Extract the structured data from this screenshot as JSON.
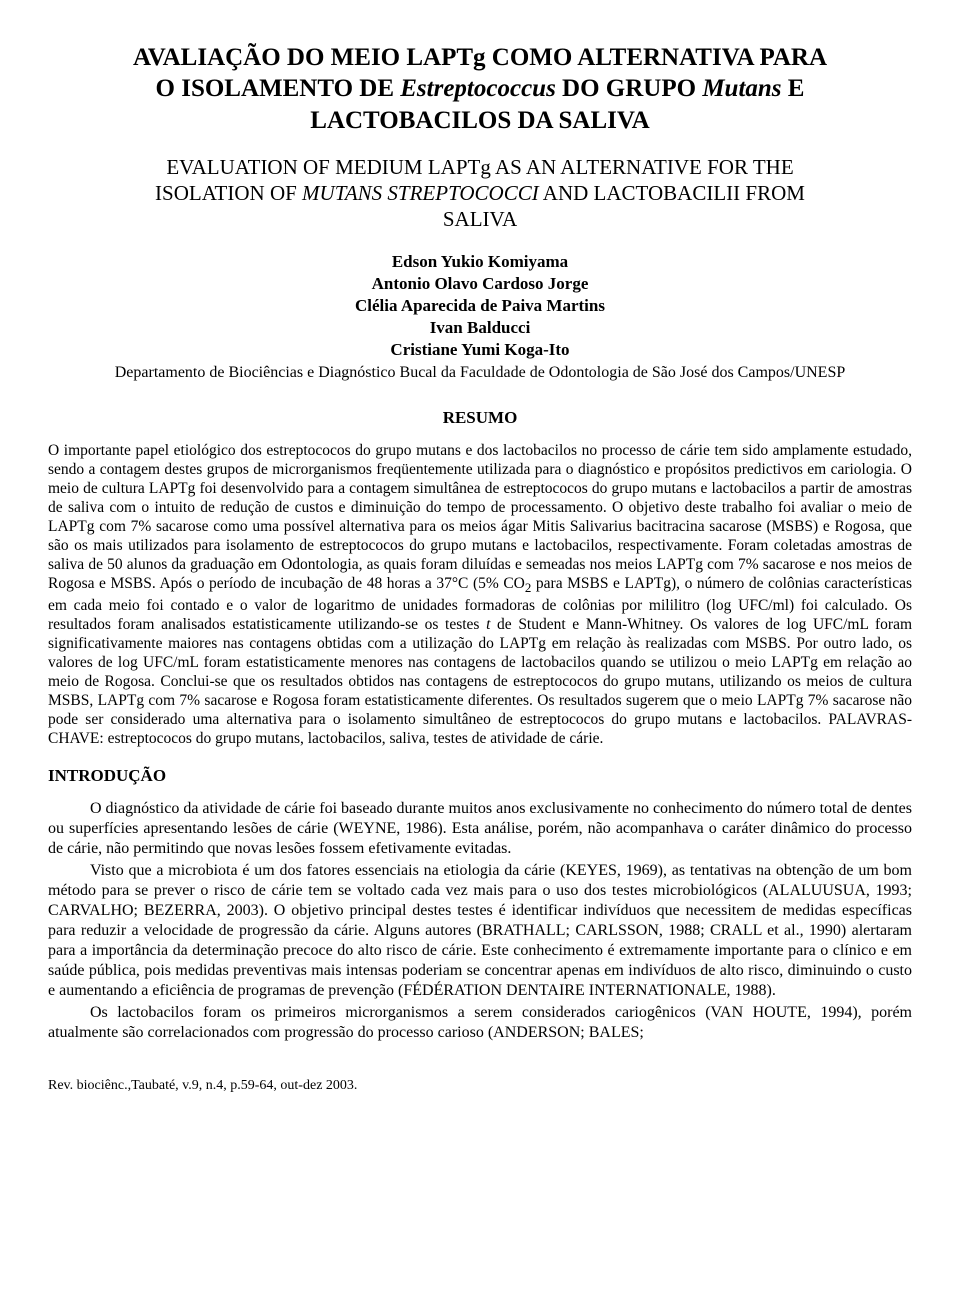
{
  "title": {
    "line1": "AVALIAÇÃO DO MEIO LAPTg COMO ALTERNATIVA PARA",
    "line2_pre": "O ISOLAMENTO DE ",
    "line2_em": "Estreptococcus",
    "line2_mid": " DO GRUPO ",
    "line2_em2": "Mutans",
    "line2_post": " E",
    "line3": "LACTOBACILOS DA SALIVA"
  },
  "subtitle": {
    "line1": "EVALUATION OF MEDIUM LAPTg AS AN ALTERNATIVE FOR THE",
    "line2_pre": "ISOLATION OF ",
    "line2_em": "MUTANS STREPTOCOCCI",
    "line2_post": " AND LACTOBACILII FROM",
    "line3": "SALIVA"
  },
  "authors": [
    "Edson Yukio Komiyama",
    "Antonio Olavo Cardoso Jorge",
    "Clélia Aparecida de Paiva Martins",
    "Ivan Balducci",
    "Cristiane Yumi Koga-Ito"
  ],
  "affiliation": "Departamento de Biociências e Diagnóstico Bucal da Faculdade de Odontologia de São José dos Campos/UNESP",
  "resumo_heading": "RESUMO",
  "abstract_pre": "O importante papel etiológico dos estreptococos do grupo mutans e dos lactobacilos no processo de cárie tem sido amplamente estudado, sendo a contagem destes grupos de microrganismos freqüentemente utilizada para o diagnóstico e propósitos predictivos em cariologia. O meio de cultura LAPTg foi desenvolvido para a contagem simultânea de estreptococos do grupo mutans e lactobacilos a partir de amostras de saliva com o intuito de redução de custos e diminuição do tempo de processamento. O objetivo deste trabalho foi avaliar o meio de LAPTg com 7% sacarose como uma possível alternativa para os meios ágar Mitis Salivarius bacitracina sacarose (MSBS) e Rogosa, que são os mais utilizados para isolamento de estreptococos do grupo mutans e lactobacilos, respectivamente. Foram coletadas amostras de saliva de 50 alunos da graduação em Odontologia, as quais foram diluídas e semeadas nos meios LAPTg com 7% sacarose e nos meios de Rogosa e MSBS. Após o período de incubação de 48 horas a 37°C (5% CO",
  "abstract_sub": "2",
  "abstract_mid": " para MSBS e LAPTg), o número de colônias características em cada meio foi contado e o valor de logaritmo de unidades formadoras de colônias por mililitro (log UFC/ml) foi calculado. Os resultados foram analisados estatisticamente utilizando-se os testes ",
  "abstract_em": "t",
  "abstract_post": " de Student e Mann-Whitney. Os valores de log UFC/mL foram significativamente maiores nas contagens obtidas com a utilização do LAPTg em relação às realizadas com MSBS. Por outro lado, os valores de log UFC/mL foram estatisticamente menores nas contagens de lactobacilos quando se utilizou o meio LAPTg em relação ao meio de Rogosa. Conclui-se que os resultados obtidos nas contagens de estreptococos do grupo mutans, utilizando os meios de cultura MSBS, LAPTg com 7% sacarose e Rogosa foram estatisticamente diferentes. Os resultados sugerem que o meio LAPTg 7% sacarose não pode ser considerado uma alternativa para o isolamento simultâneo de estreptococos do grupo mutans e lactobacilos. PALAVRAS-CHAVE: estreptococos do grupo mutans, lactobacilos, saliva, testes de atividade de cárie.",
  "intro_heading": "INTRODUÇÃO",
  "body": {
    "p1": "O diagnóstico da atividade de cárie foi baseado durante muitos anos exclusivamente no conhecimento do número total de dentes ou superfícies apresentando lesões de cárie (WEYNE, 1986). Esta análise, porém, não acompanhava o caráter dinâmico do processo de cárie, não permitindo que novas lesões fossem efetivamente evitadas.",
    "p2": "Visto que a microbiota é um dos fatores essenciais na etiologia da cárie (KEYES, 1969), as tentativas na obtenção de um bom método para se prever o risco de cárie tem se voltado cada vez mais para o uso dos testes microbiológicos (ALALUUSUA, 1993; CARVALHO; BEZERRA, 2003). O objetivo principal destes testes é identificar indivíduos que necessitem de medidas específicas para reduzir a velocidade de progressão da cárie. Alguns autores (BRATHALL; CARLSSON, 1988; CRALL et al., 1990) alertaram para a importância da determinação precoce do alto risco de cárie. Este conhecimento é extremamente importante para o clínico e em saúde pública, pois medidas preventivas mais intensas poderiam se concentrar apenas em indivíduos de alto risco, diminuindo o custo e aumentando a eficiência de programas de prevenção (FÉDÉRATION DENTAIRE INTERNATIONALE, 1988).",
    "p3": "Os lactobacilos foram os primeiros microrganismos a serem considerados cariogênicos (VAN HOUTE, 1994), porém atualmente são correlacionados com progressão do processo carioso (ANDERSON; BALES;"
  },
  "footer": "Rev. biociênc.,Taubaté, v.9, n.4, p.59-64, out-dez 2003.",
  "colors": {
    "text": "#000000",
    "background": "#ffffff"
  },
  "typography": {
    "font_family": "Times New Roman",
    "title_fontsize": 25,
    "subtitle_fontsize": 21,
    "author_fontsize": 17,
    "body_fontsize": 16,
    "abstract_fontsize": 15.5,
    "footer_fontsize": 14
  }
}
